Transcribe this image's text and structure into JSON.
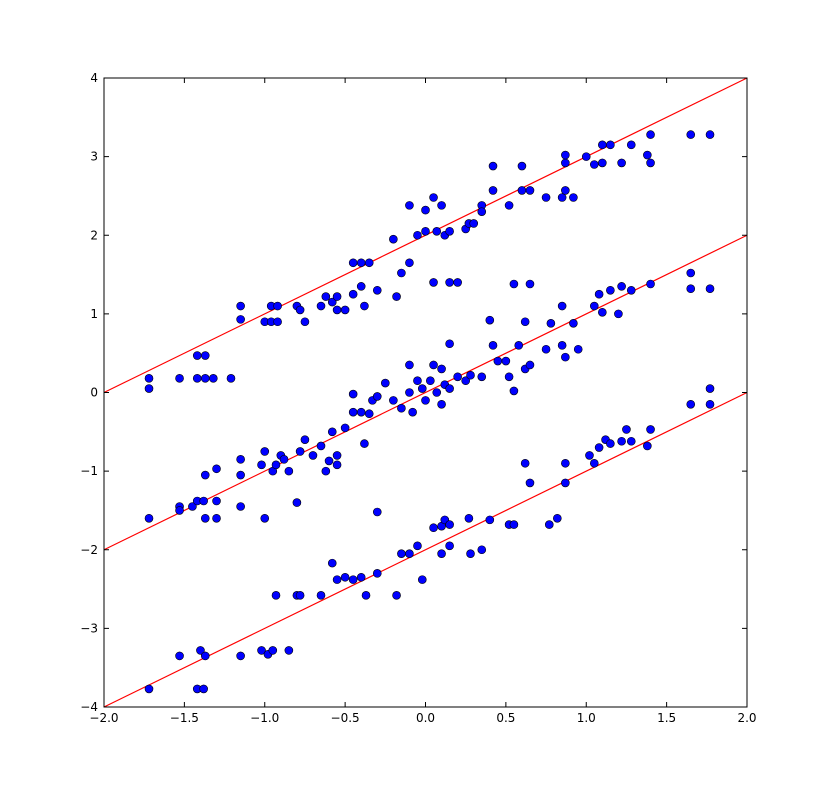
{
  "chart_data": {
    "type": "scatter",
    "xlim": [
      -2,
      2
    ],
    "ylim": [
      -4,
      4
    ],
    "xticks": [
      {
        "value": -2,
        "label": "−2.0"
      },
      {
        "value": -1.5,
        "label": "−1.5"
      },
      {
        "value": -1,
        "label": "−1.0"
      },
      {
        "value": -0.5,
        "label": "−0.5"
      },
      {
        "value": 0,
        "label": "0.0"
      },
      {
        "value": 0.5,
        "label": "0.5"
      },
      {
        "value": 1,
        "label": "1.0"
      },
      {
        "value": 1.5,
        "label": "1.5"
      },
      {
        "value": 2,
        "label": "2.0"
      }
    ],
    "yticks": [
      {
        "value": -4,
        "label": "−4"
      },
      {
        "value": -3,
        "label": "−3"
      },
      {
        "value": -2,
        "label": "−2"
      },
      {
        "value": -1,
        "label": "−1"
      },
      0,
      1,
      2,
      3,
      4
    ],
    "series": [
      {
        "color": "#0000ff",
        "x": [
          -1.72,
          -1.72,
          -1.53,
          -1.42,
          -1.37,
          -1.42,
          -1.37,
          -1.32,
          -1.21,
          -1.15,
          -1.15,
          -1.0,
          -0.96,
          -0.96,
          -0.92,
          -0.92,
          -0.8,
          -0.78,
          -0.75,
          -0.65,
          -0.62,
          -0.58,
          -0.55,
          -0.55,
          -0.5,
          -0.45,
          -0.4,
          -0.35,
          -0.45,
          -0.4,
          -0.38,
          -0.3,
          -0.18,
          -0.2,
          -0.15,
          -0.1,
          -0.1,
          0.0,
          -0.05,
          0.0,
          0.05,
          0.07,
          0.1,
          0.05,
          0.12,
          0.15,
          0.15,
          0.2,
          0.25,
          0.27,
          0.3,
          0.35,
          0.35,
          0.42,
          0.42,
          0.52,
          0.55,
          0.6,
          0.6,
          0.65,
          0.65,
          0.75,
          0.85,
          0.87,
          0.87,
          0.87,
          0.92,
          1.0,
          1.05,
          1.1,
          1.1,
          1.15,
          1.22,
          1.28,
          1.38,
          1.4,
          1.4,
          1.65,
          1.77
        ],
        "values": [
          0.18,
          0.05,
          0.18,
          0.47,
          0.47,
          0.18,
          0.18,
          0.18,
          0.18,
          1.1,
          0.93,
          0.9,
          1.1,
          0.9,
          1.1,
          0.9,
          1.1,
          1.05,
          0.9,
          1.1,
          1.22,
          1.15,
          1.22,
          1.05,
          1.05,
          1.65,
          1.65,
          1.65,
          1.25,
          1.35,
          1.1,
          1.3,
          1.22,
          1.95,
          1.52,
          2.38,
          1.65,
          2.32,
          2.0,
          2.05,
          2.48,
          2.05,
          2.38,
          1.4,
          2.0,
          2.05,
          1.4,
          1.4,
          2.08,
          2.15,
          2.15,
          2.38,
          2.3,
          2.88,
          2.57,
          2.38,
          1.38,
          2.88,
          2.57,
          1.38,
          2.57,
          2.48,
          2.48,
          2.92,
          3.02,
          2.57,
          2.48,
          3.0,
          2.9,
          3.15,
          2.92,
          3.15,
          2.92,
          3.15,
          3.02,
          2.92,
          3.28,
          3.28,
          3.28
        ]
      },
      {
        "color": "#0000ff",
        "x": [
          -1.72,
          -1.53,
          -1.53,
          -1.45,
          -1.42,
          -1.38,
          -1.37,
          -1.37,
          -1.3,
          -1.3,
          -1.3,
          -1.15,
          -1.15,
          -1.15,
          -1.02,
          -1.0,
          -1.0,
          -0.95,
          -0.93,
          -0.9,
          -0.88,
          -0.85,
          -0.8,
          -0.78,
          -0.75,
          -0.7,
          -0.65,
          -0.62,
          -0.6,
          -0.58,
          -0.55,
          -0.55,
          -0.5,
          -0.45,
          -0.45,
          -0.4,
          -0.38,
          -0.35,
          -0.33,
          -0.3,
          -0.25,
          -0.2,
          -0.15,
          -0.1,
          -0.1,
          -0.08,
          -0.05,
          -0.02,
          0.0,
          0.03,
          0.05,
          0.07,
          0.1,
          0.1,
          0.12,
          0.15,
          0.15,
          0.2,
          0.25,
          0.28,
          0.35,
          0.4,
          0.42,
          0.45,
          0.5,
          0.52,
          0.55,
          0.58,
          0.62,
          0.62,
          0.65,
          0.75,
          0.78,
          0.85,
          0.85,
          0.87,
          0.92,
          0.95,
          1.05,
          1.08,
          1.1,
          1.15,
          1.2,
          1.22,
          1.28,
          1.4,
          1.65,
          1.65,
          1.77
        ],
        "values": [
          -1.6,
          -1.45,
          -1.5,
          -1.45,
          -1.38,
          -1.38,
          -1.6,
          -1.05,
          -0.97,
          -1.38,
          -1.6,
          -0.85,
          -1.05,
          -1.45,
          -0.92,
          -0.75,
          -1.6,
          -1.0,
          -0.92,
          -0.8,
          -0.85,
          -1.0,
          -1.4,
          -0.75,
          -0.6,
          -0.8,
          -0.68,
          -1.0,
          -0.87,
          -0.5,
          -0.92,
          -0.8,
          -0.45,
          -0.25,
          -0.02,
          -0.25,
          -0.65,
          -0.27,
          -0.1,
          -0.05,
          0.12,
          -0.1,
          -0.2,
          0.0,
          0.35,
          -0.25,
          0.15,
          0.05,
          -0.1,
          0.15,
          0.35,
          0.0,
          0.3,
          -0.15,
          0.1,
          0.62,
          0.05,
          0.2,
          0.15,
          0.22,
          0.2,
          0.92,
          0.6,
          0.4,
          0.4,
          0.2,
          0.02,
          0.6,
          0.9,
          0.3,
          0.35,
          0.55,
          0.88,
          1.1,
          0.6,
          0.45,
          0.88,
          0.55,
          1.1,
          1.25,
          1.02,
          1.3,
          1.0,
          1.35,
          1.3,
          1.38,
          1.52,
          1.32,
          1.32
        ]
      },
      {
        "color": "#0000ff",
        "x": [
          -1.72,
          -1.53,
          -1.42,
          -1.38,
          -1.4,
          -1.37,
          -1.15,
          -1.02,
          -0.98,
          -0.95,
          -0.93,
          -0.85,
          -0.8,
          -0.78,
          -0.65,
          -0.58,
          -0.55,
          -0.5,
          -0.45,
          -0.4,
          -0.37,
          -0.3,
          -0.3,
          -0.18,
          -0.15,
          -0.1,
          -0.05,
          -0.02,
          0.05,
          0.1,
          0.12,
          0.15,
          0.1,
          0.15,
          0.27,
          0.28,
          0.35,
          0.4,
          0.52,
          0.55,
          0.62,
          0.65,
          0.77,
          0.82,
          0.87,
          0.87,
          1.02,
          1.05,
          1.08,
          1.12,
          1.15,
          1.22,
          1.25,
          1.28,
          1.38,
          1.4,
          1.65,
          1.77,
          1.77
        ],
        "values": [
          -3.77,
          -3.35,
          -3.77,
          -3.77,
          -3.28,
          -3.35,
          -3.35,
          -3.28,
          -3.33,
          -3.28,
          -2.58,
          -3.28,
          -2.58,
          -2.58,
          -2.58,
          -2.17,
          -2.38,
          -2.35,
          -2.38,
          -2.35,
          -2.58,
          -2.3,
          -1.52,
          -2.58,
          -2.05,
          -2.05,
          -1.95,
          -2.38,
          -1.72,
          -1.7,
          -1.62,
          -1.68,
          -2.05,
          -1.95,
          -1.6,
          -2.05,
          -2.0,
          -1.62,
          -1.68,
          -1.68,
          -0.9,
          -1.15,
          -1.68,
          -1.6,
          -0.9,
          -1.15,
          -0.8,
          -0.9,
          -0.7,
          -0.6,
          -0.65,
          -0.62,
          -0.47,
          -0.62,
          -0.68,
          -0.47,
          -0.15,
          -0.15,
          0.05
        ]
      }
    ],
    "lines": [
      {
        "color": "#ff0000",
        "x": [
          -2,
          2
        ],
        "values": [
          0,
          4
        ]
      },
      {
        "color": "#ff0000",
        "x": [
          -2,
          2
        ],
        "values": [
          -2,
          2
        ]
      },
      {
        "color": "#ff0000",
        "x": [
          -2,
          2
        ],
        "values": [
          -4,
          0
        ]
      }
    ]
  }
}
